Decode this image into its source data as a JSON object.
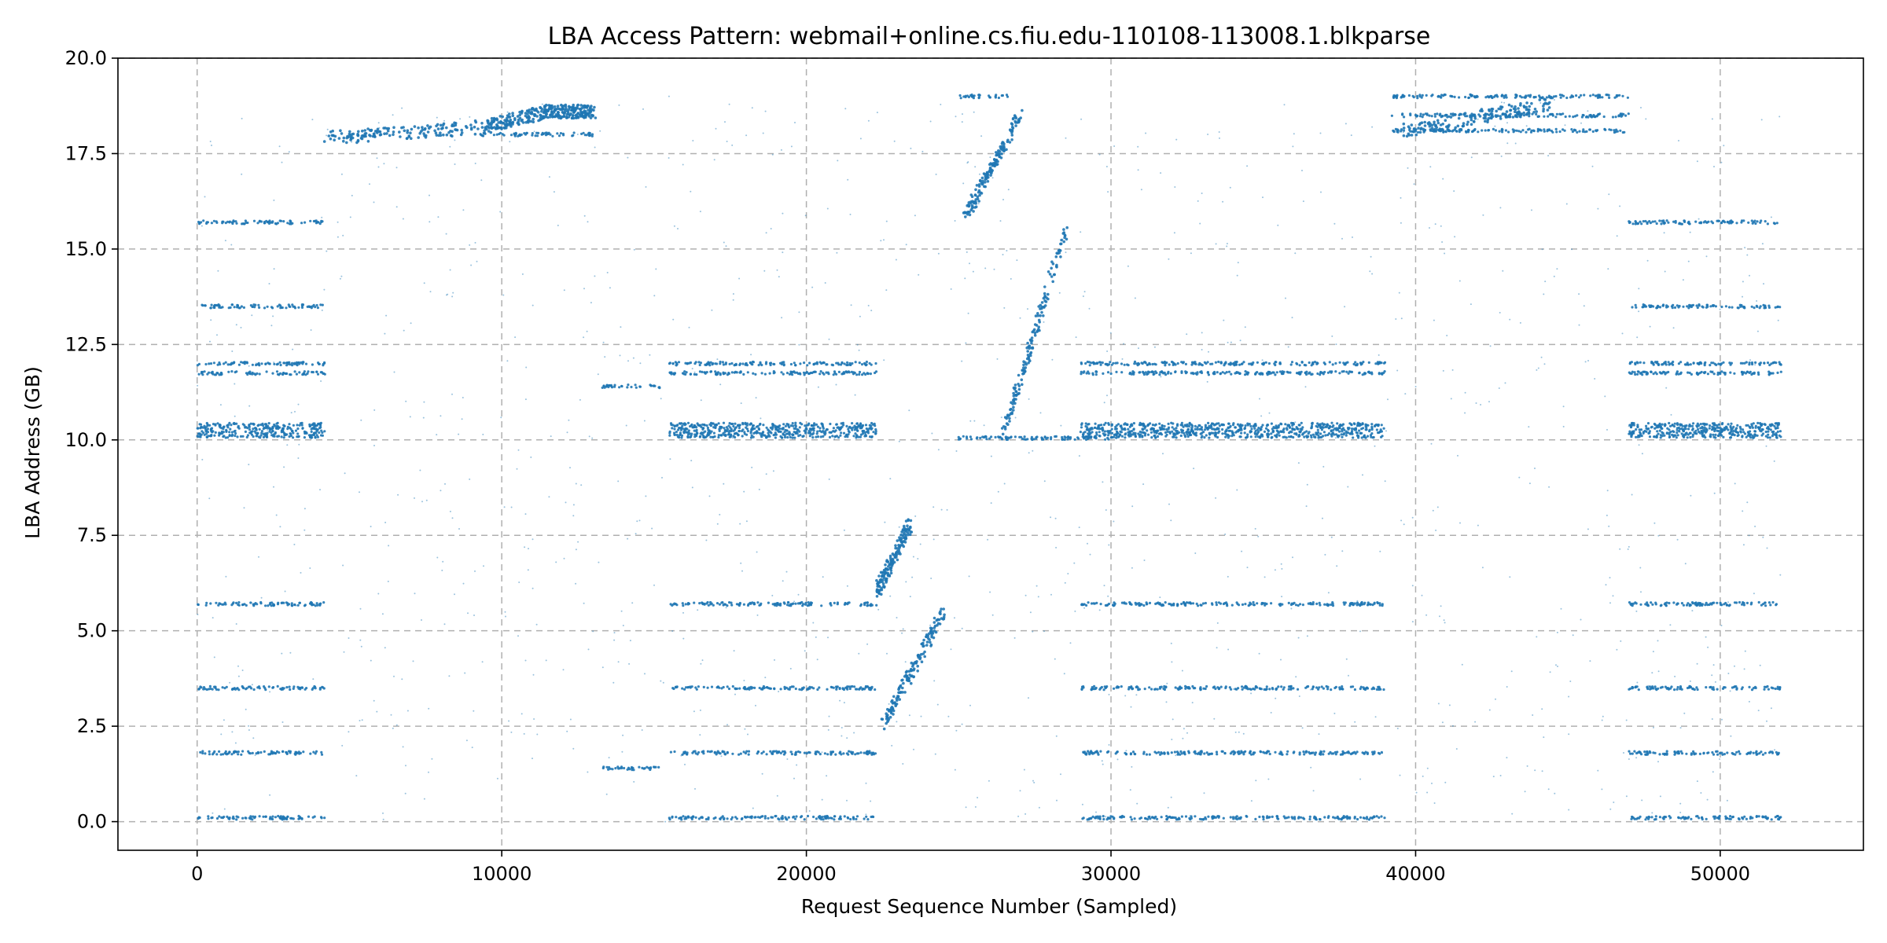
{
  "chart_data": {
    "type": "scatter",
    "title": "LBA Access Pattern: webmail+online.cs.fiu.edu-110108-113008.1.blkparse",
    "xlabel": "Request Sequence Number (Sampled)",
    "ylabel": "LBA Address (GB)",
    "xlim": [
      -2600,
      54700
    ],
    "ylim": [
      -0.75,
      20.0
    ],
    "xticks": [
      0,
      10000,
      20000,
      30000,
      40000,
      50000
    ],
    "xtick_labels": [
      "0",
      "10000",
      "20000",
      "30000",
      "40000",
      "50000"
    ],
    "yticks": [
      0.0,
      2.5,
      5.0,
      7.5,
      10.0,
      12.5,
      15.0,
      17.5,
      20.0
    ],
    "ytick_labels": [
      "0.0",
      "2.5",
      "5.0",
      "7.5",
      "10.0",
      "12.5",
      "15.0",
      "17.5",
      "20.0"
    ],
    "grid": true,
    "marker_color": "#1f77b4",
    "series": [
      {
        "bands": [
          {
            "x": [
              0,
              4200
            ],
            "y": 0.1
          },
          {
            "x": [
              0,
              4200
            ],
            "y": 1.8
          },
          {
            "x": [
              0,
              4200
            ],
            "y": 3.5
          },
          {
            "x": [
              0,
              4200
            ],
            "y": 5.7
          },
          {
            "x": [
              0,
              4200
            ],
            "y": 10.1
          },
          {
            "x": [
              0,
              4200
            ],
            "y": 10.2
          },
          {
            "x": [
              0,
              4200
            ],
            "y": 10.3
          },
          {
            "x": [
              0,
              4200
            ],
            "y": 10.4
          },
          {
            "x": [
              0,
              4200
            ],
            "y": 11.75
          },
          {
            "x": [
              0,
              4200
            ],
            "y": 12.0
          },
          {
            "x": [
              0,
              4200
            ],
            "y": 13.5
          },
          {
            "x": [
              0,
              4200
            ],
            "y": 15.7
          },
          {
            "x": [
              13300,
              15200
            ],
            "y": 1.4
          },
          {
            "x": [
              13300,
              15200
            ],
            "y": 11.4
          },
          {
            "x": [
              15500,
              22300
            ],
            "y": 0.1
          },
          {
            "x": [
              15500,
              22300
            ],
            "y": 1.8
          },
          {
            "x": [
              15500,
              22300
            ],
            "y": 3.5
          },
          {
            "x": [
              15500,
              22300
            ],
            "y": 5.7
          },
          {
            "x": [
              15500,
              22300
            ],
            "y": 10.1
          },
          {
            "x": [
              15500,
              22300
            ],
            "y": 10.2
          },
          {
            "x": [
              15500,
              22300
            ],
            "y": 10.3
          },
          {
            "x": [
              15500,
              22300
            ],
            "y": 10.4
          },
          {
            "x": [
              15500,
              22300
            ],
            "y": 11.75
          },
          {
            "x": [
              15500,
              22300
            ],
            "y": 12.0
          },
          {
            "x": [
              29000,
              39000
            ],
            "y": 0.1
          },
          {
            "x": [
              29000,
              39000
            ],
            "y": 1.8
          },
          {
            "x": [
              29000,
              39000
            ],
            "y": 3.5
          },
          {
            "x": [
              29000,
              39000
            ],
            "y": 5.7
          },
          {
            "x": [
              29000,
              39000
            ],
            "y": 10.1
          },
          {
            "x": [
              29000,
              39000
            ],
            "y": 10.2
          },
          {
            "x": [
              29000,
              39000
            ],
            "y": 10.3
          },
          {
            "x": [
              29000,
              39000
            ],
            "y": 10.4
          },
          {
            "x": [
              29000,
              39000
            ],
            "y": 11.75
          },
          {
            "x": [
              29000,
              39000
            ],
            "y": 12.0
          },
          {
            "x": [
              47000,
              52000
            ],
            "y": 0.1
          },
          {
            "x": [
              47000,
              52000
            ],
            "y": 1.8
          },
          {
            "x": [
              47000,
              52000
            ],
            "y": 3.5
          },
          {
            "x": [
              47000,
              52000
            ],
            "y": 5.7
          },
          {
            "x": [
              47000,
              52000
            ],
            "y": 10.1
          },
          {
            "x": [
              47000,
              52000
            ],
            "y": 10.2
          },
          {
            "x": [
              47000,
              52000
            ],
            "y": 10.3
          },
          {
            "x": [
              47000,
              52000
            ],
            "y": 10.4
          },
          {
            "x": [
              47000,
              52000
            ],
            "y": 11.75
          },
          {
            "x": [
              47000,
              52000
            ],
            "y": 12.0
          },
          {
            "x": [
              47000,
              52000
            ],
            "y": 13.5
          },
          {
            "x": [
              47000,
              52000
            ],
            "y": 15.7
          },
          {
            "x": [
              9300,
              13000
            ],
            "y": 18.0
          },
          {
            "x": [
              11000,
              13000
            ],
            "y": 18.5
          },
          {
            "x": [
              39200,
              47000
            ],
            "y": 18.1
          },
          {
            "x": [
              39200,
              47000
            ],
            "y": 18.5
          },
          {
            "x": [
              39200,
              47000
            ],
            "y": 19.0
          },
          {
            "x": [
              25000,
              26700
            ],
            "y": 19.0
          },
          {
            "x": [
              25000,
              30000
            ],
            "y": 10.05
          }
        ],
        "trends": [
          {
            "x": [
              4200,
              9500
            ],
            "y": [
              17.9,
              18.2
            ]
          },
          {
            "x": [
              9500,
              11500
            ],
            "y": [
              18.2,
              18.6
            ]
          },
          {
            "x": [
              11500,
              13000
            ],
            "y": [
              18.6,
              18.6
            ]
          },
          {
            "x": [
              39500,
              44500
            ],
            "y": [
              18.1,
              18.8
            ]
          },
          {
            "x": [
              22300,
              23400
            ],
            "y": [
              6.0,
              7.8
            ]
          },
          {
            "x": [
              22500,
              24500
            ],
            "y": [
              2.5,
              5.5
            ]
          },
          {
            "x": [
              25200,
              27000
            ],
            "y": [
              15.8,
              18.5
            ]
          },
          {
            "x": [
              26500,
              28500
            ],
            "y": [
              10.2,
              15.5
            ]
          }
        ]
      }
    ]
  }
}
